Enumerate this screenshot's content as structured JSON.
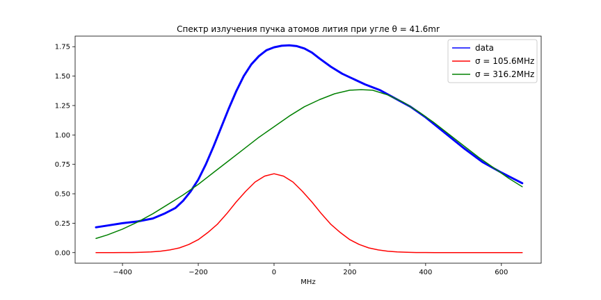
{
  "chart_data": {
    "type": "line",
    "title": "Спектр излучения пучка атомов лития при угле θ = 41.6mr",
    "xlabel": "MHz",
    "ylabel": "",
    "xlim": [
      -525,
      705
    ],
    "ylim": [
      -0.09,
      1.84
    ],
    "xticks": [
      -400,
      -200,
      0,
      200,
      400,
      600
    ],
    "xtick_labels": [
      "−400",
      "−200",
      "0",
      "200",
      "400",
      "600"
    ],
    "yticks": [
      0.0,
      0.25,
      0.5,
      0.75,
      1.0,
      1.25,
      1.5,
      1.75
    ],
    "ytick_labels": [
      "0.00",
      "0.25",
      "0.50",
      "0.75",
      "1.00",
      "1.25",
      "1.50",
      "1.75"
    ],
    "grid": false,
    "legend_position": "top-right",
    "series": [
      {
        "name": "data",
        "color": "#0000ff",
        "width": 3,
        "x": [
          -470,
          -440,
          -400,
          -360,
          -320,
          -290,
          -260,
          -240,
          -220,
          -200,
          -180,
          -160,
          -140,
          -120,
          -100,
          -80,
          -60,
          -40,
          -20,
          0,
          20,
          40,
          60,
          80,
          100,
          120,
          150,
          180,
          200,
          240,
          280,
          320,
          360,
          400,
          450,
          500,
          550,
          600,
          655
        ],
        "y": [
          0.215,
          0.23,
          0.25,
          0.265,
          0.29,
          0.33,
          0.38,
          0.44,
          0.52,
          0.62,
          0.75,
          0.9,
          1.06,
          1.22,
          1.37,
          1.5,
          1.6,
          1.67,
          1.72,
          1.745,
          1.758,
          1.762,
          1.755,
          1.735,
          1.7,
          1.65,
          1.58,
          1.52,
          1.49,
          1.43,
          1.38,
          1.31,
          1.24,
          1.15,
          1.02,
          0.89,
          0.77,
          0.68,
          0.59
        ]
      },
      {
        "name": "σ = 105.6MHz",
        "color": "#ff0000",
        "width": 1.5,
        "x": [
          -470,
          -450,
          -425,
          -400,
          -375,
          -350,
          -325,
          -300,
          -275,
          -250,
          -225,
          -200,
          -175,
          -150,
          -125,
          -100,
          -75,
          -50,
          -25,
          0,
          25,
          50,
          75,
          100,
          125,
          150,
          175,
          200,
          225,
          250,
          275,
          300,
          325,
          350,
          375,
          400,
          425,
          450,
          475,
          500,
          525,
          550,
          575,
          600,
          625,
          655
        ],
        "y": [
          0.0,
          0.0,
          0.0,
          0.001,
          0.001,
          0.003,
          0.006,
          0.012,
          0.023,
          0.04,
          0.069,
          0.11,
          0.17,
          0.24,
          0.33,
          0.43,
          0.52,
          0.6,
          0.65,
          0.67,
          0.65,
          0.6,
          0.52,
          0.43,
          0.33,
          0.24,
          0.17,
          0.11,
          0.069,
          0.04,
          0.023,
          0.012,
          0.006,
          0.003,
          0.001,
          0.001,
          0.0,
          0.0,
          0.0,
          0.0,
          0.0,
          0.0,
          0.0,
          0.0,
          0.0,
          0.0
        ]
      },
      {
        "name": "σ = 316.2MHz",
        "color": "#008000",
        "width": 1.5,
        "x": [
          -470,
          -440,
          -400,
          -360,
          -320,
          -280,
          -240,
          -200,
          -160,
          -120,
          -80,
          -40,
          0,
          40,
          80,
          120,
          160,
          200,
          230,
          260,
          300,
          340,
          380,
          420,
          460,
          500,
          540,
          580,
          620,
          655
        ],
        "y": [
          0.12,
          0.15,
          0.2,
          0.26,
          0.33,
          0.41,
          0.49,
          0.58,
          0.68,
          0.78,
          0.88,
          0.98,
          1.07,
          1.16,
          1.24,
          1.3,
          1.35,
          1.38,
          1.385,
          1.38,
          1.34,
          1.28,
          1.2,
          1.11,
          1.01,
          0.91,
          0.81,
          0.72,
          0.63,
          0.56
        ]
      }
    ]
  }
}
